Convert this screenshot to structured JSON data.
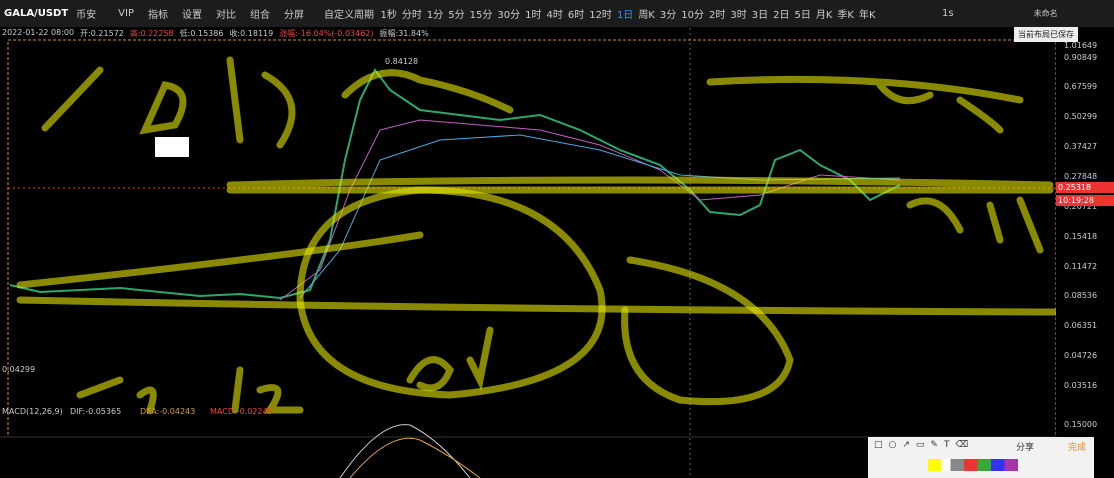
{
  "header": {
    "symbol": "GALA/USDT",
    "exchange": "币安",
    "menu": [
      "VIP",
      "指标",
      "设置",
      "对比",
      "组合",
      "分屏"
    ],
    "custom_period": "自定义周期",
    "periods": [
      "1秒",
      "分时",
      "1分",
      "5分",
      "15分",
      "30分",
      "1时",
      "4时",
      "6时",
      "12时",
      "1日",
      "周K",
      "3分",
      "10分",
      "2时",
      "3时",
      "3日",
      "2日",
      "5日",
      "月K",
      "季K",
      "年K"
    ],
    "active_period": "1日",
    "interval": "1s",
    "workspace": "未命名",
    "tooltip": "当前布局已保存"
  },
  "info": {
    "date": "2022-01-22 08:00",
    "open": "开:0.21572",
    "high": "高:0.22258",
    "low": "低:0.15386",
    "close": "收:0.18119",
    "change": "涨幅:-16.04%(-0.03462)",
    "amplitude": "振幅:31.84%"
  },
  "price_axis": {
    "scale": "log",
    "ticks": [
      1.01649,
      0.90849,
      0.67599,
      0.50299,
      0.37427,
      0.27848,
      0.20721,
      0.15418,
      0.11472,
      0.08536,
      0.06351,
      0.04726,
      0.03516
    ],
    "current_price": 0.25318,
    "countdown": "10:19:28"
  },
  "annotations": {
    "high_marker": "0.84128",
    "low_marker": "0.04299"
  },
  "macd": {
    "label": "MACD(12,26,9)",
    "dif": "DIF:-0.05365",
    "dea": "DEA:-0.04243",
    "macd": "MACD:-0.02243",
    "axis_label": "0.15000"
  },
  "drawing_toolbar": {
    "share": "分享",
    "done": "完成"
  }
}
